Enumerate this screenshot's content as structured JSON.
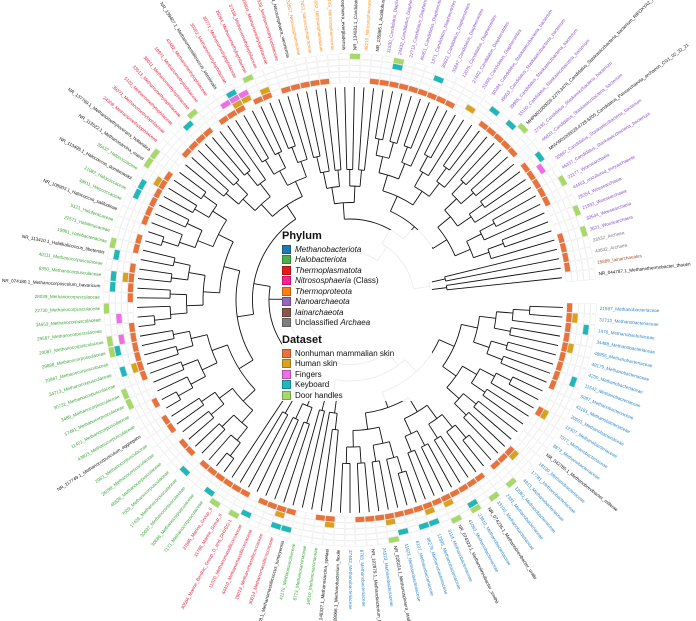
{
  "legend": {
    "phylum_title": "Phylum",
    "phylum": [
      {
        "name": "Methanobacteriota",
        "suffix": "",
        "italic": true,
        "color": "#1f77b4"
      },
      {
        "name": "Halobacteriota",
        "suffix": "",
        "italic": true,
        "color": "#4daf4a"
      },
      {
        "name": "Thermoplasmatota",
        "suffix": "",
        "italic": true,
        "color": "#e41a1c"
      },
      {
        "name": "Nitrososphaeria",
        "suffix": " (Class)",
        "italic": true,
        "color": "#ff1f8e"
      },
      {
        "name": "Thermoproteota",
        "suffix": "",
        "italic": true,
        "color": "#ff7f0e"
      },
      {
        "name": "Nanoarchaeota",
        "suffix": "",
        "italic": true,
        "color": "#9467bd"
      },
      {
        "name": "Iainarchaeota",
        "suffix": "",
        "italic": true,
        "color": "#8c564b"
      },
      {
        "name": "Unclassified ",
        "suffix": "Archaea",
        "italic": false,
        "suffix_italic": true,
        "color": "#808080"
      }
    ],
    "dataset_title": "Dataset",
    "dataset": [
      {
        "name": "Nonhuman mammalian skin",
        "color": "#e8723a"
      },
      {
        "name": "Human skin",
        "color": "#d8a21e"
      },
      {
        "name": "Fingers",
        "color": "#ee6ee6"
      },
      {
        "name": "Keyboard",
        "color": "#1fb7b7"
      },
      {
        "name": "Door handles",
        "color": "#a6d96a"
      }
    ]
  },
  "colors": {
    "Methanobacteriota": "#2e86c8",
    "Halobacteriota": "#3aa63a",
    "Thermoplasmatota": "#e0223a",
    "Nitrososphaeria": "#ff1f8e",
    "Thermoproteota": "#ff8c1a",
    "Nanoarchaeota": "#8a4fd0",
    "Iainarchaeota": "#a0522d",
    "Unclassified": "#808080",
    "reference": "#111111",
    "branch": "#111111",
    "ring_grid": "#dddddd"
  },
  "tips": [
    {
      "label": "21597_Methanobacteriaceae",
      "group": "Methanobacteriota",
      "ref": false
    },
    {
      "label": "31713_Methanobacteriaceae",
      "group": "Methanobacteriota",
      "ref": false
    },
    {
      "label": "1476_Methanobacteriaceae",
      "group": "Methanobacteriota",
      "ref": false
    },
    {
      "label": "34488_Methanobacteriaceae",
      "group": "Methanobacteriota",
      "ref": false
    },
    {
      "label": "48955_Methanobacteriaceae",
      "group": "Methanobacteriota",
      "ref": false
    },
    {
      "label": "48179_Methanobacteriaceae",
      "group": "Methanobacteriota",
      "ref": false
    },
    {
      "label": "4230_Methanobacteriaceae",
      "group": "Methanobacteriota",
      "ref": false
    },
    {
      "label": "11542_Methanobacteriaceae",
      "group": "Methanobacteriota",
      "ref": false
    },
    {
      "label": "5097_Methanobacteriaceae",
      "group": "Methanobacteriota",
      "ref": false
    },
    {
      "label": "43161_Methanobacteriaceae",
      "group": "Methanobacteriota",
      "ref": false
    },
    {
      "label": "20501_Methanobacteriaceae",
      "group": "Methanobacteriota",
      "ref": false
    },
    {
      "label": "12307_Methanobacteriaceae",
      "group": "Methanobacteriota",
      "ref": false
    },
    {
      "label": "7377_Methanobacteriaceae",
      "group": "Methanobacteriota",
      "ref": false
    },
    {
      "label": "8873_Methanobacteriaceae",
      "group": "Methanobacteriota",
      "ref": false
    },
    {
      "label": "NR_042785.1_Methanobrevibacter_millerae",
      "group": "Methanobacteriota",
      "ref": true
    },
    {
      "label": "18190_Methanobacteriaceae",
      "group": "Methanobacteriota",
      "ref": false
    },
    {
      "label": "17781_Methanobacteriaceae",
      "group": "Methanobacteriota",
      "ref": false
    },
    {
      "label": "4913_Methanobacteriaceae",
      "group": "Methanobacteriota",
      "ref": false
    },
    {
      "label": "12082_Methanobacteriaceae",
      "group": "Methanobacteriota",
      "ref": false
    },
    {
      "label": "2381_Methanobacteriaceae",
      "group": "Methanobacteriota",
      "ref": false
    },
    {
      "label": "33103_Methanobacteriaceae",
      "group": "Methanobacteriota",
      "ref": false
    },
    {
      "label": "NR_074235.1_Methanobrevibacter_oralis",
      "group": "Methanobacteriota",
      "ref": true
    },
    {
      "label": "23812_Methanobacteriaceae",
      "group": "Methanobacteriota",
      "ref": false
    },
    {
      "label": "41093_Methanobacteriaceae",
      "group": "Methanobacteriota",
      "ref": false
    },
    {
      "label": "NR_074323.1_Methanobrevibacter_smithii",
      "group": "Methanobacteriota",
      "ref": true
    },
    {
      "label": "3114_Methanobacteriaceae",
      "group": "Methanobacteriota",
      "ref": false
    },
    {
      "label": "12895_Methanobacteriaceae",
      "group": "Methanobacteriota",
      "ref": false
    },
    {
      "label": "36279_Methanobacteriaceae",
      "group": "Methanobacteriota",
      "ref": false
    },
    {
      "label": "6107_Methanobacteriaceae",
      "group": "Methanobacteriota",
      "ref": false
    },
    {
      "label": "11823_Methanobacteriaceae",
      "group": "Methanobacteriota",
      "ref": false
    },
    {
      "label": "NR_028224.1_Methanosphaera_stadtmanae",
      "group": "Methanobacteriota",
      "ref": true
    },
    {
      "label": "24523_Methanobacteriaceae",
      "group": "Methanobacteriota",
      "ref": false
    },
    {
      "label": "NR_102879.1_Methanobacterium_formicicum",
      "group": "Methanobacteriota",
      "ref": true
    },
    {
      "label": "8765_Methanobacteriaceae",
      "group": "Methanobacteriota",
      "ref": false
    },
    {
      "label": "37402_Methanobacteriaceae",
      "group": "Methanobacteriota",
      "ref": false
    },
    {
      "label": "NR_109066.1_Methanobacterium_flexile",
      "group": "Methanobacteriota",
      "ref": true
    },
    {
      "label": "NR_148337.1_Methanosarcina_spelaei",
      "group": "Halobacteriota",
      "ref": true
    },
    {
      "label": "16510_Methanosarcinaceae",
      "group": "Halobacteriota",
      "ref": false
    },
    {
      "label": "8773_Methanosarcinaceae",
      "group": "Halobacteriota",
      "ref": false
    },
    {
      "label": "41170_Methanosarcinaceae",
      "group": "Halobacteriota",
      "ref": false
    },
    {
      "label": "NR_118588.1_Methanomassiliicoccus_luminyensis",
      "group": "Halobacteriota",
      "ref": true
    },
    {
      "label": "30014_Methanomassiliicoccaceae",
      "group": "Thermoplasmatota",
      "ref": false
    },
    {
      "label": "18013_Methanomassiliicoccaceae",
      "group": "Thermoplasmatota",
      "ref": false
    },
    {
      "label": "44410_Methanomassiliicoccaceae",
      "group": "Thermoplasmatota",
      "ref": false
    },
    {
      "label": "11020_Methanomassiliicoccaceae",
      "group": "Thermoplasmatota",
      "ref": false
    },
    {
      "label": "30584_Marine_Benthic_Group_D_and_DHVEG-1",
      "group": "Thermoplasmatota",
      "ref": false
    },
    {
      "label": "11788_Marine_Group_II",
      "group": "Thermoplasmatota",
      "ref": false
    },
    {
      "label": "27085_Marine_Group_II",
      "group": "Thermoplasmatota",
      "ref": false
    },
    {
      "label": "7173_Methanocorpusculaceae",
      "group": "Halobacteriota",
      "ref": false
    },
    {
      "label": "30686_Methanocorpusculaceae",
      "group": "Halobacteriota",
      "ref": false
    },
    {
      "label": "30697_Methanocorpusculaceae",
      "group": "Halobacteriota",
      "ref": false
    },
    {
      "label": "17436_Methanocorpusculaceae",
      "group": "Halobacteriota",
      "ref": false
    },
    {
      "label": "7009_Methanocorpusculaceae",
      "group": "Halobacteriota",
      "ref": false
    },
    {
      "label": "46836_Methanocorpusculaceae",
      "group": "Halobacteriota",
      "ref": false
    },
    {
      "label": "26099_Methanocorpusculaceae",
      "group": "Halobacteriota",
      "ref": false
    },
    {
      "label": "2963_Methanocorpusculaceae",
      "group": "Halobacteriota",
      "ref": false
    },
    {
      "label": "NR_117749.1_Methanocorpusculum_aggregans",
      "group": "Halobacteriota",
      "ref": true
    },
    {
      "label": "43803_Methanocorpusculaceae",
      "group": "Halobacteriota",
      "ref": false
    },
    {
      "label": "11421_Methanocorpusculaceae",
      "group": "Halobacteriota",
      "ref": false
    },
    {
      "label": "17481_Methanocorpusculaceae",
      "group": "Halobacteriota",
      "ref": false
    },
    {
      "label": "3489_Methanocorpusculaceae",
      "group": "Halobacteriota",
      "ref": false
    },
    {
      "label": "30732_Methanocorpusculaceae",
      "group": "Halobacteriota",
      "ref": false
    },
    {
      "label": "34713_Methanocorpusculaceae",
      "group": "Halobacteriota",
      "ref": false
    },
    {
      "label": "20867_Methanocorpusculaceae",
      "group": "Halobacteriota",
      "ref": false
    },
    {
      "label": "29888_Methanocorpusculaceae",
      "group": "Halobacteriota",
      "ref": false
    },
    {
      "label": "20087_Methanocorpusculaceae",
      "group": "Halobacteriota",
      "ref": false
    },
    {
      "label": "29567_Methanocorpusculaceae",
      "group": "Halobacteriota",
      "ref": false
    },
    {
      "label": "34653_Methanocorpusculaceae",
      "group": "Halobacteriota",
      "ref": false
    },
    {
      "label": "22730_Methanocorpusculaceae",
      "group": "Halobacteriota",
      "ref": false
    },
    {
      "label": "28039_Methanocorpusculaceae",
      "group": "Halobacteriota",
      "ref": false
    },
    {
      "label": "NR_074180.1_Methanocorpusculum_bavaricum",
      "group": "Halobacteriota",
      "ref": true
    },
    {
      "label": "8350_Methanocorpusculaceae",
      "group": "Halobacteriota",
      "ref": false
    },
    {
      "label": "40111_Methanocorpusculaceae",
      "group": "Halobacteriota",
      "ref": false
    },
    {
      "label": "NR_113410.1_Halalkalicoccus_tibetensis",
      "group": "Halobacteriota",
      "ref": true
    },
    {
      "label": "19961_Halobacteriaceae",
      "group": "Halobacteriota",
      "ref": false
    },
    {
      "label": "22571_Haloferacaceae",
      "group": "Halobacteriota",
      "ref": false
    },
    {
      "label": "5121_Haloferacaceae",
      "group": "Halobacteriota",
      "ref": false
    },
    {
      "label": "NR_108903.1_Halococcus_salifodinae",
      "group": "Halobacteriota",
      "ref": true
    },
    {
      "label": "39811_Halococcaceae",
      "group": "Halobacteriota",
      "ref": false
    },
    {
      "label": "21082_Halococcaceae",
      "group": "Halobacteriota",
      "ref": false
    },
    {
      "label": "NR_113495.1_Halococcus_dombrowskii",
      "group": "Halobacteriota",
      "ref": true
    },
    {
      "label": "35437_Halococcaceae",
      "group": "Halobacteriota",
      "ref": false
    },
    {
      "label": "NR_113522.1_Methanosarcina_mazei",
      "group": "Halobacteriota",
      "ref": true
    },
    {
      "label": "NR_137769.1_Methanomethylovorans_hollandica",
      "group": "Halobacteriota",
      "ref": true
    },
    {
      "label": "24308_Methanomethylophilaceae",
      "group": "Thermoplasmatota",
      "ref": false
    },
    {
      "label": "39371_Methanomethylophilaceae",
      "group": "Thermoplasmatota",
      "ref": false
    },
    {
      "label": "5102_Methanomethylophilaceae",
      "group": "Thermoplasmatota",
      "ref": false
    },
    {
      "label": "33513_Methanomethylophilaceae",
      "group": "Thermoplasmatota",
      "ref": false
    },
    {
      "label": "38011_Methanomethylophilaceae",
      "group": "Thermoplasmatota",
      "ref": false
    },
    {
      "label": "18971_Methanomethylophilaceae",
      "group": "Thermoplasmatota",
      "ref": false
    },
    {
      "label": "42482_Methanomethylophilaceae",
      "group": "Thermoplasmatota",
      "ref": false
    },
    {
      "label": "NR_139407.1_Methanomassiliicoccus_intestinalis",
      "group": "Thermoplasmatota",
      "ref": true
    },
    {
      "label": "30352_Methanomethylophilaceae",
      "group": "Thermoplasmatota",
      "ref": false
    },
    {
      "label": "30771_Methanomethylophilaceae",
      "group": "Thermoplasmatota",
      "ref": false
    },
    {
      "label": "26094_Methanomethylophilaceae",
      "group": "Thermoplasmatota",
      "ref": false
    },
    {
      "label": "37138_Methanomethylophilaceae",
      "group": "Thermoplasmatota",
      "ref": false
    },
    {
      "label": "16804_Methanomethylophilaceae",
      "group": "Thermoplasmatota",
      "ref": false
    },
    {
      "label": "31538_Methanomethylophilaceae",
      "group": "Thermoplasmatota",
      "ref": false
    },
    {
      "label": "NR_155689.1_Nitrososphaera_viennensis",
      "group": "Thermoproteota",
      "ref": true
    },
    {
      "label": "32857_Nitrososphaeraceae",
      "group": "Thermoproteota",
      "ref": false
    },
    {
      "label": "27853_Nitrososphaeraceae",
      "group": "Thermoproteota",
      "ref": false
    },
    {
      "label": "31082_Nitrososphaeraceae",
      "group": "Thermoproteota",
      "ref": false
    },
    {
      "label": "11145_Nitrososphaeraceae",
      "group": "Thermoproteota",
      "ref": false
    },
    {
      "label": "CP011097.1.1483_Candidatus_Nitrososphaera_evergladensis",
      "group": "Thermoproteota",
      "ref": true
    },
    {
      "label": "NR_134081.1_Candidatus_Nitrosocosmicus_exaquare",
      "group": "Thermoproteota",
      "ref": true
    },
    {
      "label": "48210_Nitrososphaeraceae",
      "group": "Thermoproteota",
      "ref": false
    },
    {
      "label": "NR_135865.1_Acidilobus_sulfurireducens",
      "group": "Thermoproteota",
      "ref": true
    },
    {
      "label": "31530_Candidatus_Diapherotrites",
      "group": "Nanoarchaeota",
      "ref": false
    },
    {
      "label": "24432_Candidatus_Diapherotrites",
      "group": "Nanoarchaeota",
      "ref": false
    },
    {
      "label": "22713_Candidatus_Diapherotrites",
      "group": "Nanoarchaeota",
      "ref": false
    },
    {
      "label": "45451_Candidatus_Diapherotrites",
      "group": "Nanoarchaeota",
      "ref": false
    },
    {
      "label": "1371_Candidatus_Diapherotrites",
      "group": "Nanoarchaeota",
      "ref": false
    },
    {
      "label": "36922_Candidatus_Diapherotrites",
      "group": "Nanoarchaeota",
      "ref": false
    },
    {
      "label": "35847_Candidatus_Diapherotrites",
      "group": "Nanoarchaeota",
      "ref": false
    },
    {
      "label": "12075_Candidatus_Diapherotrites",
      "group": "Nanoarchaeota",
      "ref": false
    },
    {
      "label": "27402_Candidatus_Diapherotrites",
      "group": "Nanoarchaeota",
      "ref": false
    },
    {
      "label": "31905_Candidatus_Diapherotrites",
      "group": "Nanoarchaeota",
      "ref": false
    },
    {
      "label": "10284_Candidatus_Staskawiczbacteria_bacterium",
      "group": "Nanoarchaeota",
      "ref": false
    },
    {
      "label": "49003_Candidatus_Staskawiczbacteria_bacterium",
      "group": "Nanoarchaeota",
      "ref": false
    },
    {
      "label": "39985_Candidatus_Staskawiczbacteria_bacterium",
      "group": "Nanoarchaeota",
      "ref": false
    },
    {
      "label": "33150_Candidatus_Staskawiczbacteria_bacterium",
      "group": "Nanoarchaeota",
      "ref": false
    },
    {
      "label": "MHPM01000026.2276.3476_Candidatus_Staskawiczbacteria_bacterium_RIFOXYA2_FULL_32_7",
      "group": "Nanoarchaeota",
      "ref": true
    },
    {
      "label": "27330_Candidatus_Staskawiczbacteria_bacterium",
      "group": "Nanoarchaeota",
      "ref": false
    },
    {
      "label": "46829_Candidatus_Staskawiczbacteria_bacterium",
      "group": "Nanoarchaeota",
      "ref": false
    },
    {
      "label": "MNVW01000029.4728.6205_Candidatus_Pacearchaeota_archaeon_CG1_02_32_21",
      "group": "Nanoarchaeota",
      "ref": true
    },
    {
      "label": "35897_Candidatus_Staskawiczbacteria_bacterium",
      "group": "Nanoarchaeota",
      "ref": false
    },
    {
      "label": "46337_Candidatus_Staskawiczbacteria_bacterium",
      "group": "Nanoarchaeota",
      "ref": false
    },
    {
      "label": "22177_Woesearchaeia",
      "group": "Nanoarchaeota",
      "ref": false
    },
    {
      "label": "44453_uncultured_euryarchaeote",
      "group": "Nanoarchaeota",
      "ref": false
    },
    {
      "label": "28254_Woesearchaeia",
      "group": "Nanoarchaeota",
      "ref": false
    },
    {
      "label": "21932_Woesearchaeia",
      "group": "Nanoarchaeota",
      "ref": false
    },
    {
      "label": "30544_Woesearchaeia",
      "group": "Nanoarchaeota",
      "ref": false
    },
    {
      "label": "3621_Woesearchaeia",
      "group": "Nanoarchaeota",
      "ref": false
    },
    {
      "label": "33532_Archaea",
      "group": "Unclassified",
      "ref": false
    },
    {
      "label": "43832_Archaea",
      "group": "Unclassified",
      "ref": false
    },
    {
      "label": "15889_Iainarchaeales",
      "group": "Iainarchaeota",
      "ref": false
    },
    {
      "label": "NR_044787.1_Methanothermobacter_thaueri",
      "group": "Methanobacteriota",
      "ref": true
    }
  ]
}
